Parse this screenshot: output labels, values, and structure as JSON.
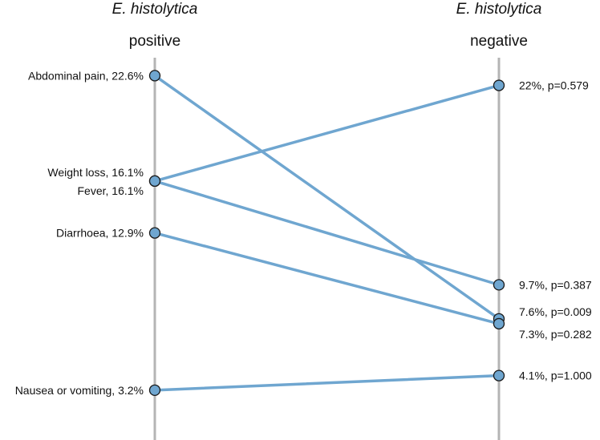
{
  "chart_data": {
    "type": "slope",
    "left_group": {
      "organism": "E. histolytica",
      "status": "positive"
    },
    "right_group": {
      "organism": "E. histolytica",
      "status": "negative"
    },
    "ylim": [
      0,
      25
    ],
    "series": [
      {
        "name": "Abdominal pain",
        "left": 22.6,
        "right": 7.6,
        "left_label": "Abdominal pain, 22.6%",
        "right_label": "7.6%, p=0.009"
      },
      {
        "name": "Weight loss",
        "left": 16.1,
        "right": 22.0,
        "left_label": "Weight loss, 16.1%",
        "right_label": "22%, p=0.579"
      },
      {
        "name": "Fever",
        "left": 16.1,
        "right": 9.7,
        "left_label": "Fever, 16.1%",
        "right_label": "9.7%, p=0.387"
      },
      {
        "name": "Diarrhoea",
        "left": 12.9,
        "right": 7.3,
        "left_label": "Diarrhoea, 12.9%",
        "right_label": "7.3%, p=0.282"
      },
      {
        "name": "Nausea or vomiting",
        "left": 3.2,
        "right": 4.1,
        "left_label": "Nausea or vomiting, 3.2%",
        "right_label": "4.1%, p=1.000"
      }
    ],
    "colors": {
      "line": "#6fa6d0",
      "marker": "#6fa6d0",
      "marker_edge": "#1a1a1a",
      "axis": "#b4b4b4"
    }
  }
}
